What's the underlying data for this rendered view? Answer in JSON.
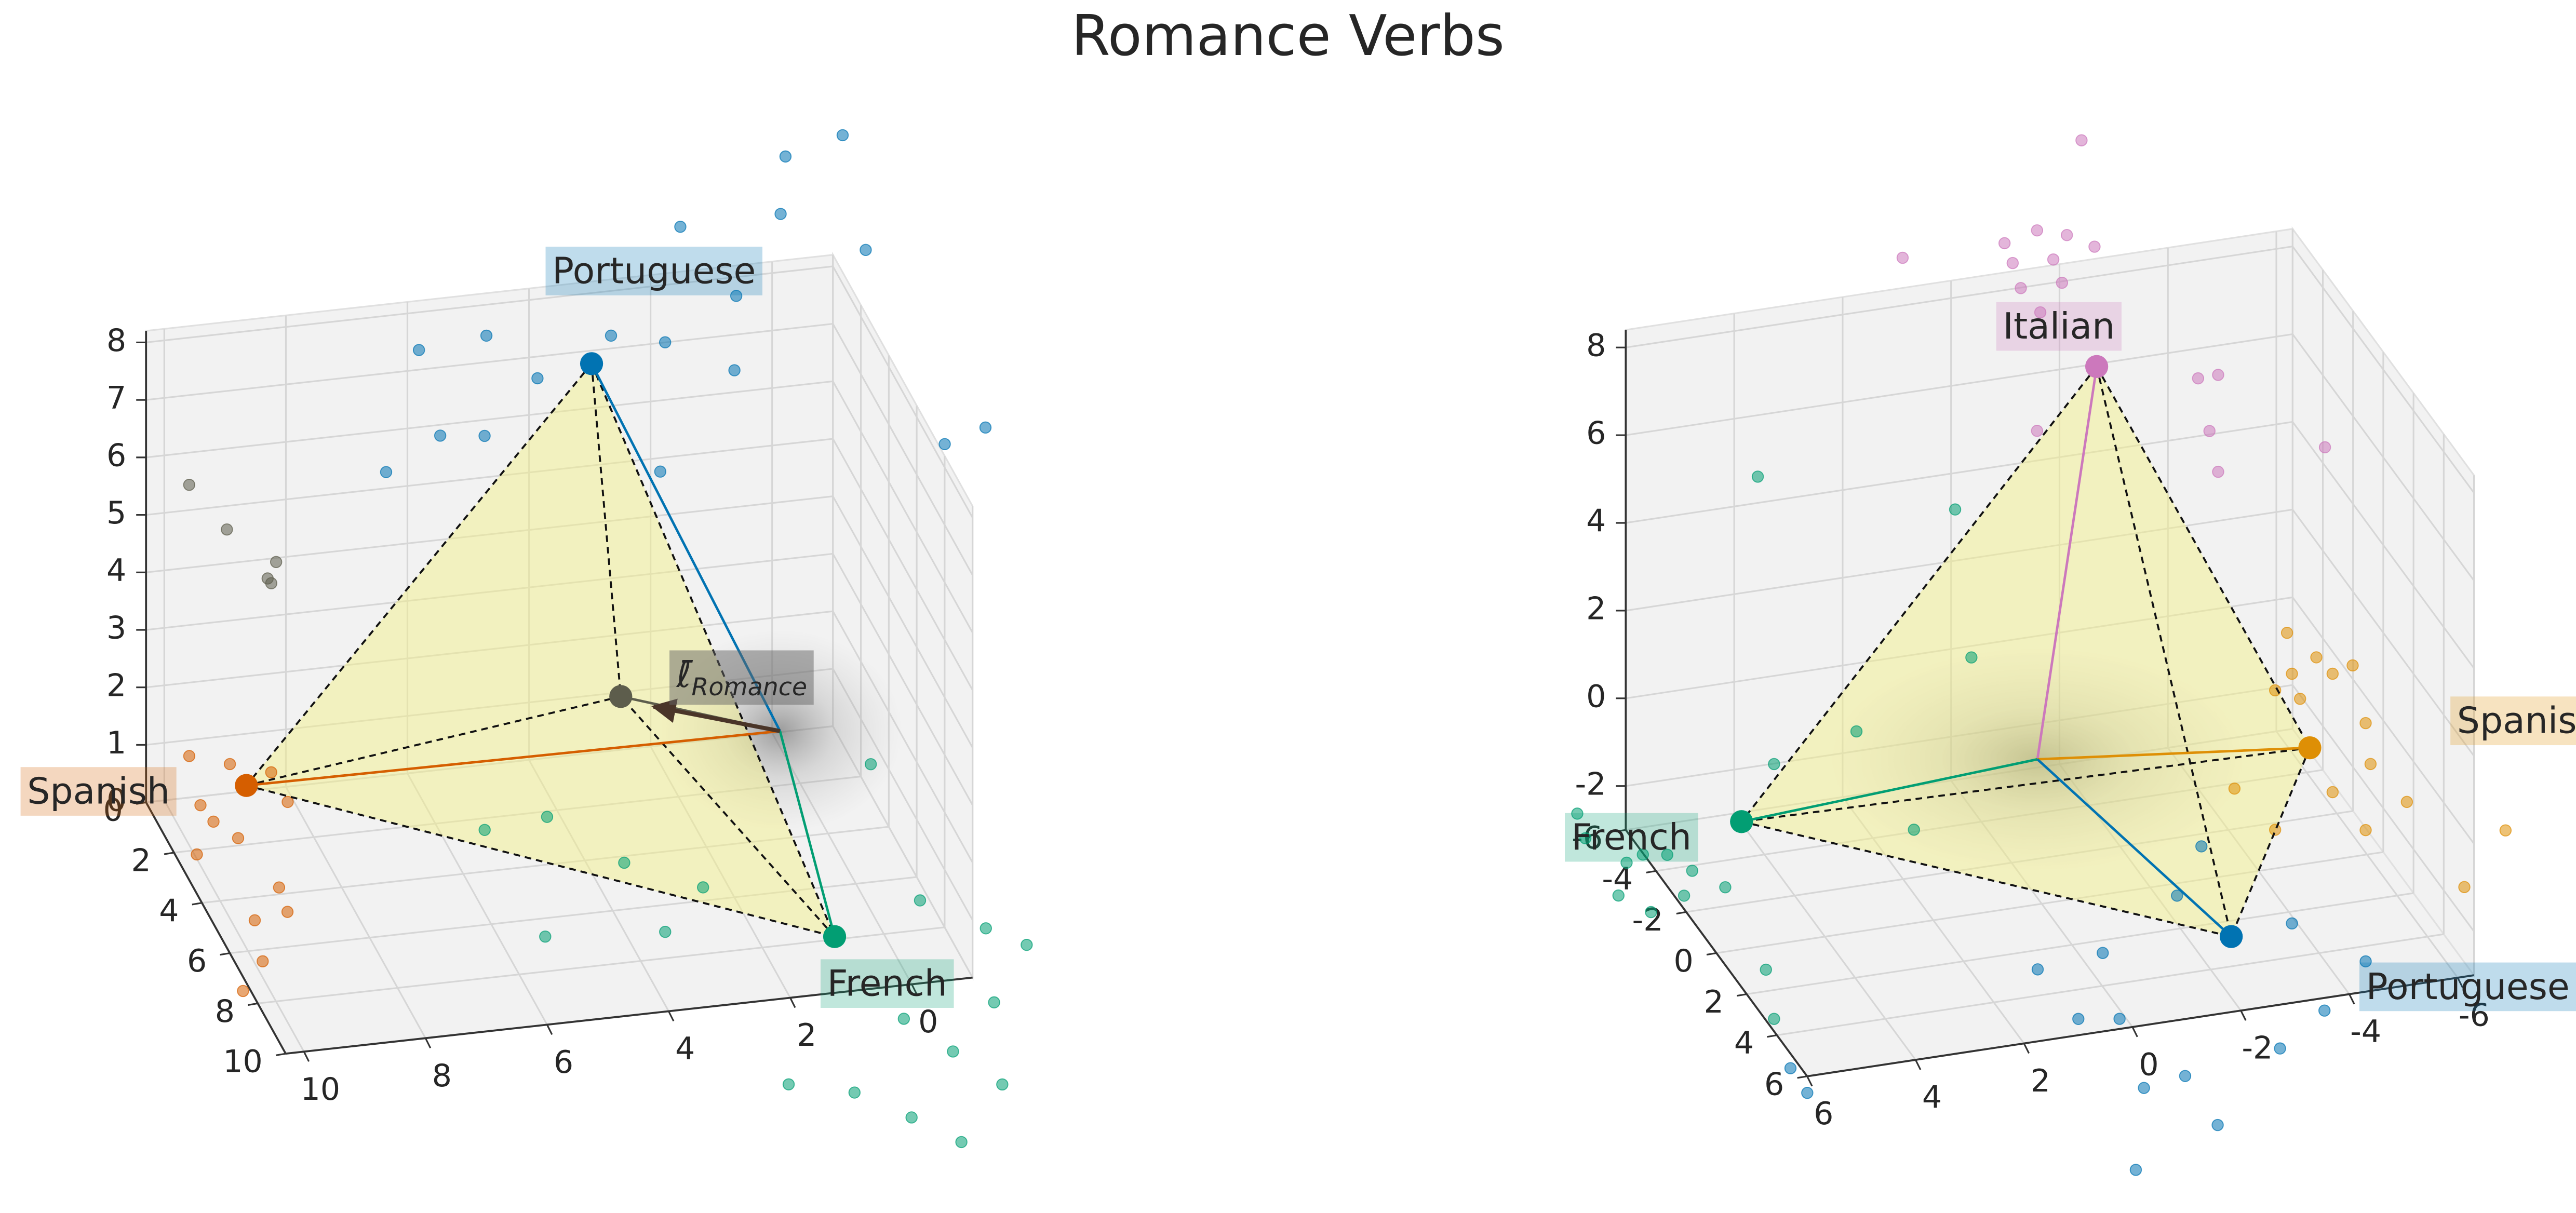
{
  "title": "Romance Verbs",
  "chart_data": [
    {
      "type": "scatter3d",
      "xlim": [
        -1,
        10.3
      ],
      "ylim": [
        0,
        10
      ],
      "zlim": [
        0,
        8.2
      ],
      "xticks": [
        0,
        2,
        4,
        6,
        8,
        10
      ],
      "yticks": [
        0,
        2,
        4,
        6,
        8,
        10
      ],
      "zticks": [
        0,
        1,
        2,
        3,
        4,
        5,
        6,
        7,
        8
      ],
      "series": [
        {
          "name": "Portuguese",
          "color": "#0173b2",
          "vertex": {
            "x": 3.43,
            "y": 2,
            "z": 7.7
          },
          "points": {
            "x": [
              -0.7,
              0.24,
              0.32,
              -1.08,
              1.05,
              1.97,
              2.22,
              1.08,
              3.11,
              5.16,
              6.27,
              4.32,
              5.92,
              5.19,
              6.81,
              2.3,
              -2.38,
              -3.05
            ],
            "y": [
              2,
              2,
              2,
              2,
              2,
              2,
              2,
              2,
              2,
              2,
              2,
              2,
              2,
              2,
              2,
              2,
              2,
              2
            ],
            "z": [
              11.19,
              10.93,
              9.94,
              9.15,
              8.6,
              9.91,
              7.93,
              7.31,
              8.15,
              8.39,
              8.27,
              7.55,
              6.74,
              6.65,
              6.21,
              5.69,
              5.62,
              5.83
            ]
          }
        },
        {
          "name": "Spanish",
          "color": "#d55e00",
          "vertex": {
            "x": 8.65,
            "y": 0,
            "z": 0.1
          },
          "points": {
            "x": [
              9.38,
              8.82,
              8.25,
              9.63,
              9.57,
              9.33,
              9.12,
              9.78,
              10.01,
              10.57,
              10.11,
              8.25,
              9.2
            ],
            "y": [
              -0.91,
              -0.44,
              0.04,
              0.98,
              1.65,
              2.37,
              4.39,
              5.52,
              7.09,
              8.12,
              2.81,
              1.22,
              5.34
            ],
            "z": [
              0.3,
              0.3,
              0.3,
              0.3,
              0.3,
              0.3,
              0.3,
              0.3,
              0.3,
              0.3,
              0.3,
              0.3,
              0.3
            ]
          }
        },
        {
          "name": "French",
          "color": "#029e73",
          "vertex": {
            "x": 0.81,
            "y": 8,
            "z": 0.05
          },
          "points": {
            "x": [
              -0.85,
              -1.63,
              -2.12,
              -1.12,
              -0.06,
              -0.54,
              0.59,
              1.15,
              1.82,
              2.77,
              0.42,
              2.4,
              3.37,
              5.27,
              5.29,
              4.21,
              -1.26,
              3.41
            ],
            "y": [
              6.89,
              8.21,
              9,
              11.02,
              12.69,
              14.13,
              16.12,
              14.99,
              13.82,
              13.24,
              11.26,
              5.5,
              7.01,
              6.69,
              2.44,
              2.21,
              1.58,
              4.25
            ],
            "z": [
              0,
              0,
              0,
              0,
              0,
              0,
              0,
              0,
              0,
              0,
              0,
              0,
              0,
              0,
              0,
              0,
              0,
              0
            ]
          }
        },
        {
          "color": "#5d5d4c",
          "vertex": {
            "x": 2.72,
            "y": 1,
            "z": 1.39
          },
          "points": {
            "x": [
              9.59,
              8.97,
              8.16,
              8.3,
              8.24
            ],
            "y": [
              0,
              0,
              0,
              0,
              0
            ],
            "z": [
              5.44,
              4.59,
              3.93,
              3.66,
              3.57
            ]
          }
        }
      ],
      "centroid": {
        "x": 0.56,
        "y": 3,
        "z": 1.41
      },
      "arrow": {
        "label": "ℓ̄",
        "subscript": "Romance",
        "to": {
          "x": 2.64,
          "y": 3,
          "z": 2.08
        }
      }
    },
    {
      "type": "scatter3d",
      "xlim": [
        -6.3,
        6
      ],
      "ylim": [
        -6,
        6
      ],
      "zlim": [
        -3,
        8.4
      ],
      "xticks": [
        -6,
        -4,
        -2,
        0,
        2,
        4,
        6
      ],
      "yticks": [
        -6,
        -4,
        -2,
        0,
        2,
        4,
        6
      ],
      "zticks": [
        -2,
        0,
        2,
        4,
        6,
        8
      ],
      "series": [
        {
          "name": "Italian",
          "color": "#cc78bc",
          "vertex": {
            "x": -1.85,
            "y": -3,
            "z": 7.5
          },
          "points": {
            "x": [
              -1.57,
              1.73,
              -0.15,
              -0.75,
              -1.3,
              -1.81,
              -0.3,
              -1.05,
              -0.45,
              -1.21,
              -0.81,
              -4.09,
              -3.72,
              -3.93,
              -4.09,
              -6.06,
              -0.75
            ],
            "y": [
              -3,
              -3,
              -3,
              -3,
              -3,
              -3,
              -3,
              -3,
              -3,
              -3,
              -3,
              -3,
              -3,
              -3,
              -3,
              -3,
              -3
            ],
            "z": [
              12.71,
              10.65,
              10.63,
              10.81,
              10.6,
              10.24,
              10.15,
              10.09,
              9.55,
              9.53,
              8.93,
              6.89,
              6.88,
              5.64,
              4.68,
              4.87,
              6.24
            ]
          }
        },
        {
          "name": "Spanish",
          "color": "#de8f05",
          "vertex": {
            "x": -6.06,
            "y": -4,
            "z": -2.45
          },
          "points": {
            "x": [
              -5.64,
              -6.18,
              -5.73,
              -6.48,
              -5.88,
              -6.85,
              -7.09,
              -7.18,
              -7.85,
              -7.09,
              -8.91,
              -9.67,
              -5.42,
              -4.67,
              -6.48,
              -5.42
            ],
            "y": [
              -4,
              -4,
              -4,
              -4,
              -4,
              -4,
              -4,
              -4,
              -4,
              -4,
              -4,
              -4,
              -4,
              -4,
              -4,
              -4
            ],
            "z": [
              0.25,
              -0.41,
              -0.7,
              -0.84,
              -1.3,
              -0.72,
              -2.08,
              -3.03,
              -4.02,
              -4.52,
              -6.16,
              -5.01,
              -4.2,
              -3.12,
              -3.54,
              -1.02
            ]
          }
        },
        {
          "name": "French",
          "color": "#029e73",
          "vertex": {
            "x": 4.98,
            "y": -2,
            "z": -1.13
          },
          "points": {
            "x": [
              8.01,
              7.86,
              7.1,
              6.8,
              6.35,
              5.89,
              6.04,
              6.65,
              7.25,
              5.28,
              4.53,
              4.38,
              4.68,
              1.04,
              2.86,
              4.38,
              0.74,
              1.8
            ],
            "y": [
              -2,
              -2,
              -2,
              -2,
              -2,
              -2,
              -2,
              -2,
              -2,
              -2,
              -2,
              -2,
              -2,
              -2,
              -2,
              -2,
              -2,
              -2
            ],
            "z": [
              -0.38,
              -0.97,
              -1.67,
              -1.54,
              -1.63,
              -2.08,
              -2.62,
              -2.88,
              -2.39,
              -2.57,
              -4.59,
              -5.74,
              6.68,
              5.25,
              0.53,
              0.07,
              1.82,
              -1.91
            ]
          }
        },
        {
          "name": "Portuguese",
          "color": "#0173b2",
          "vertex": {
            "x": -2.38,
            "y": 4,
            "z": -2.32
          },
          "points": {
            "x": [
              -0.77,
              -1.53,
              -2.13,
              -0.62,
              -0.32,
              0.44,
              -0.01,
              -1.38,
              -1.83,
              -3.28,
              -4.1,
              -4.86,
              -3.5,
              5.44,
              5.75,
              1.19
            ],
            "y": [
              4,
              4,
              4,
              4,
              4,
              4,
              4,
              4,
              4,
              4,
              4,
              4,
              4,
              4,
              4,
              4
            ],
            "z": [
              -5.47,
              -5.34,
              -6.57,
              -7.31,
              -3.81,
              -3.67,
              -2.25,
              -1.2,
              -0.16,
              -5.04,
              -4.33,
              -3.35,
              -2.23,
              -4.42,
              -3.8,
              -2.4
            ]
          }
        }
      ],
      "centroid": {
        "x": 0.08,
        "y": 0,
        "z": 0.31
      }
    }
  ]
}
